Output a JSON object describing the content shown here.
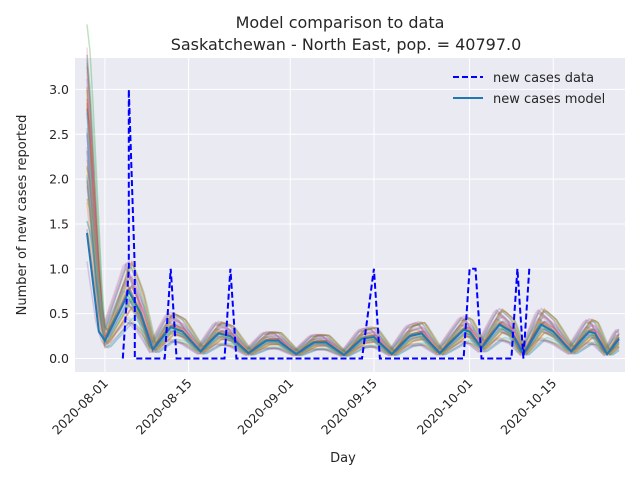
{
  "chart_data": {
    "type": "line",
    "title": "Model comparison to data",
    "subtitle": "Saskatchewan - North East, pop. = 40797.0",
    "xlabel": "Day",
    "ylabel": "Number of new cases reported",
    "xlim": [
      "2020-07-27",
      "2020-10-27"
    ],
    "ylim": [
      -0.15,
      3.35
    ],
    "x_ticks": [
      "2020-08-01",
      "2020-08-15",
      "2020-09-01",
      "2020-09-15",
      "2020-10-01",
      "2020-10-15"
    ],
    "y_ticks": [
      "0.0",
      "0.5",
      "1.0",
      "1.5",
      "2.0",
      "2.5",
      "3.0"
    ],
    "grid": true,
    "legend_position": "top-right",
    "legend": [
      "new cases data",
      "new cases model"
    ],
    "series": [
      {
        "name": "new cases data",
        "style": "dashed",
        "color": "#0000ff",
        "points": [
          [
            "2020-08-04",
            0
          ],
          [
            "2020-08-05",
            1
          ],
          [
            "2020-08-05",
            3
          ],
          [
            "2020-08-06",
            1
          ],
          [
            "2020-08-06",
            0
          ],
          [
            "2020-08-09",
            0
          ],
          [
            "2020-08-11",
            0
          ],
          [
            "2020-08-12",
            1
          ],
          [
            "2020-08-13",
            0
          ],
          [
            "2020-08-21",
            0
          ],
          [
            "2020-08-22",
            1
          ],
          [
            "2020-08-23",
            0
          ],
          [
            "2020-09-13",
            0
          ],
          [
            "2020-09-15",
            1
          ],
          [
            "2020-09-16",
            0
          ],
          [
            "2020-09-26",
            0
          ],
          [
            "2020-09-30",
            0
          ],
          [
            "2020-10-01",
            1
          ],
          [
            "2020-10-02",
            1
          ],
          [
            "2020-10-03",
            0
          ],
          [
            "2020-10-08",
            0
          ],
          [
            "2020-10-09",
            1
          ],
          [
            "2020-10-10",
            0
          ],
          [
            "2020-10-11",
            1
          ]
        ]
      },
      {
        "name": "new cases model",
        "style": "solid",
        "color": "#1f77b4",
        "points": [
          [
            "2020-07-29",
            1.4
          ],
          [
            "2020-07-31",
            0.3
          ],
          [
            "2020-08-01",
            0.2
          ],
          [
            "2020-08-04",
            0.6
          ],
          [
            "2020-08-05",
            0.75
          ],
          [
            "2020-08-07",
            0.5
          ],
          [
            "2020-08-09",
            0.1
          ],
          [
            "2020-08-12",
            0.35
          ],
          [
            "2020-08-14",
            0.3
          ],
          [
            "2020-08-17",
            0.08
          ],
          [
            "2020-08-20",
            0.28
          ],
          [
            "2020-08-22",
            0.25
          ],
          [
            "2020-08-25",
            0.06
          ],
          [
            "2020-08-28",
            0.2
          ],
          [
            "2020-08-30",
            0.2
          ],
          [
            "2020-09-02",
            0.05
          ],
          [
            "2020-09-05",
            0.18
          ],
          [
            "2020-09-07",
            0.18
          ],
          [
            "2020-09-10",
            0.04
          ],
          [
            "2020-09-13",
            0.22
          ],
          [
            "2020-09-15",
            0.24
          ],
          [
            "2020-09-18",
            0.05
          ],
          [
            "2020-09-21",
            0.25
          ],
          [
            "2020-09-23",
            0.28
          ],
          [
            "2020-09-26",
            0.06
          ],
          [
            "2020-09-30",
            0.32
          ],
          [
            "2020-10-01",
            0.3
          ],
          [
            "2020-10-03",
            0.12
          ],
          [
            "2020-10-06",
            0.38
          ],
          [
            "2020-10-08",
            0.3
          ],
          [
            "2020-10-10",
            0.05
          ],
          [
            "2020-10-13",
            0.38
          ],
          [
            "2020-10-15",
            0.3
          ],
          [
            "2020-10-18",
            0.08
          ],
          [
            "2020-10-21",
            0.3
          ],
          [
            "2020-10-22",
            0.28
          ],
          [
            "2020-10-24",
            0.05
          ],
          [
            "2020-10-26",
            0.22
          ]
        ]
      }
    ]
  }
}
